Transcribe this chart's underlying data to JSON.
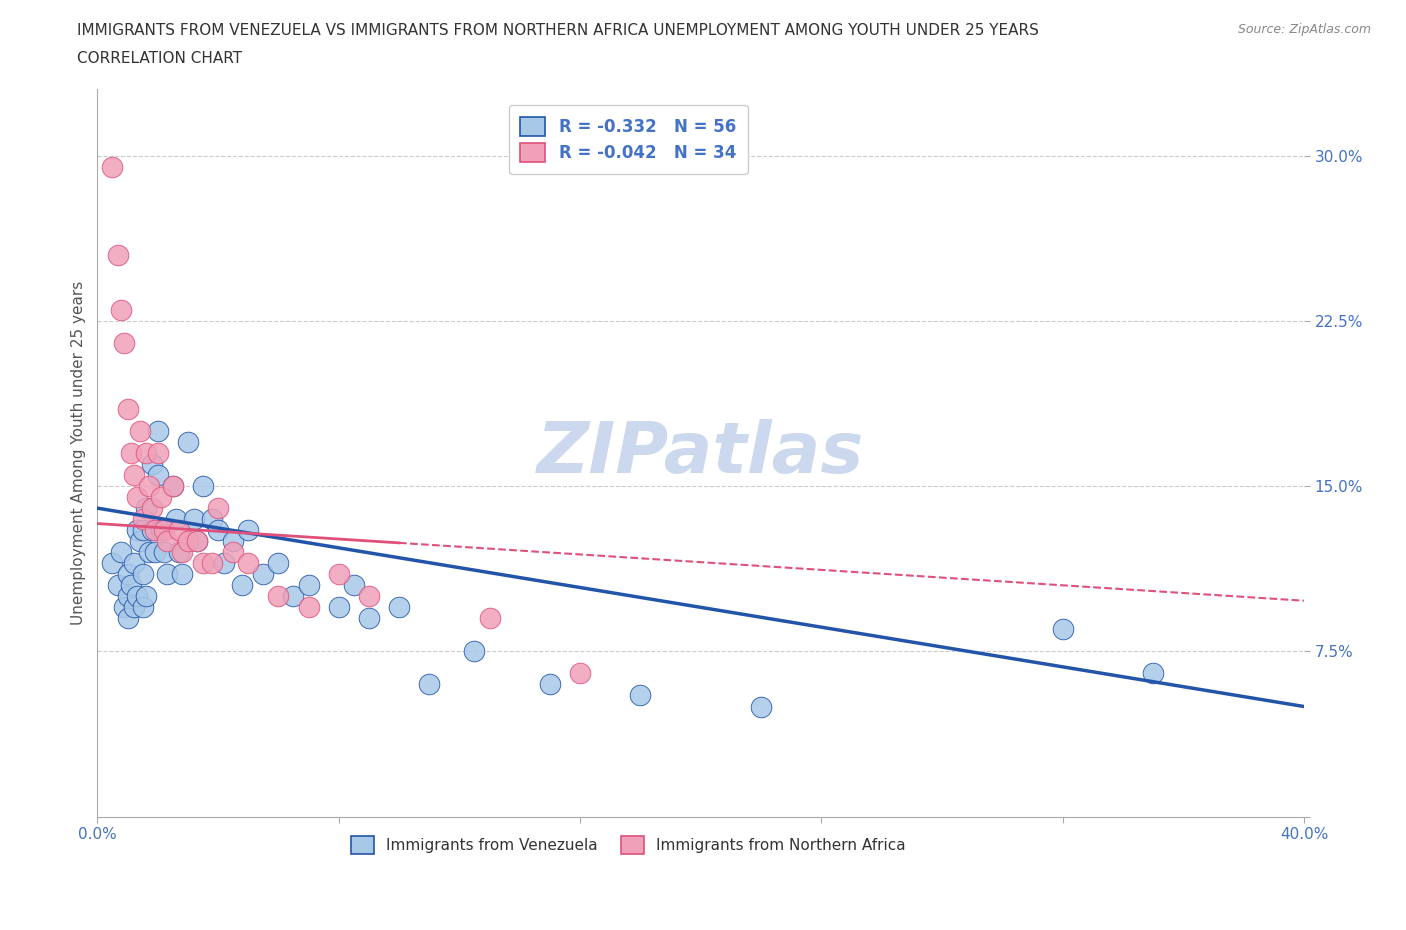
{
  "title_line1": "IMMIGRANTS FROM VENEZUELA VS IMMIGRANTS FROM NORTHERN AFRICA UNEMPLOYMENT AMONG YOUTH UNDER 25 YEARS",
  "title_line2": "CORRELATION CHART",
  "source_text": "Source: ZipAtlas.com",
  "ylabel": "Unemployment Among Youth under 25 years",
  "xlim": [
    0.0,
    0.4
  ],
  "ylim": [
    0.0,
    0.33
  ],
  "ytick_labels": [
    "",
    "7.5%",
    "15.0%",
    "22.5%",
    "30.0%"
  ],
  "ytick_values": [
    0.0,
    0.075,
    0.15,
    0.225,
    0.3
  ],
  "xtick_labels": [
    "0.0%",
    "",
    "",
    "",
    "",
    "40.0%"
  ],
  "xtick_values": [
    0.0,
    0.08,
    0.16,
    0.24,
    0.32,
    0.4
  ],
  "legend_r1": "R = -0.332   N = 56",
  "legend_r2": "R = -0.042   N = 34",
  "watermark": "ZIPatlas",
  "color_venezuela": "#a8c8e8",
  "color_venezuela_line": "#2255aa",
  "color_n_africa": "#f0a0b8",
  "color_n_africa_line": "#e0507a",
  "background_color": "#ffffff",
  "grid_color": "#cccccc",
  "title_color": "#333333",
  "axis_label_color": "#4472c4",
  "watermark_color": "#ccd8ee",
  "venezuela_x": [
    0.005,
    0.007,
    0.008,
    0.009,
    0.01,
    0.01,
    0.01,
    0.011,
    0.012,
    0.012,
    0.013,
    0.013,
    0.014,
    0.015,
    0.015,
    0.015,
    0.016,
    0.016,
    0.017,
    0.018,
    0.018,
    0.019,
    0.02,
    0.02,
    0.021,
    0.022,
    0.023,
    0.025,
    0.026,
    0.027,
    0.028,
    0.03,
    0.032,
    0.033,
    0.035,
    0.038,
    0.04,
    0.042,
    0.045,
    0.048,
    0.05,
    0.055,
    0.06,
    0.065,
    0.07,
    0.08,
    0.085,
    0.09,
    0.1,
    0.11,
    0.125,
    0.15,
    0.18,
    0.22,
    0.32,
    0.35
  ],
  "venezuela_y": [
    0.115,
    0.105,
    0.12,
    0.095,
    0.11,
    0.1,
    0.09,
    0.105,
    0.115,
    0.095,
    0.13,
    0.1,
    0.125,
    0.13,
    0.11,
    0.095,
    0.14,
    0.1,
    0.12,
    0.13,
    0.16,
    0.12,
    0.175,
    0.155,
    0.13,
    0.12,
    0.11,
    0.15,
    0.135,
    0.12,
    0.11,
    0.17,
    0.135,
    0.125,
    0.15,
    0.135,
    0.13,
    0.115,
    0.125,
    0.105,
    0.13,
    0.11,
    0.115,
    0.1,
    0.105,
    0.095,
    0.105,
    0.09,
    0.095,
    0.06,
    0.075,
    0.06,
    0.055,
    0.05,
    0.085,
    0.065
  ],
  "n_africa_x": [
    0.005,
    0.007,
    0.008,
    0.009,
    0.01,
    0.011,
    0.012,
    0.013,
    0.014,
    0.015,
    0.016,
    0.017,
    0.018,
    0.019,
    0.02,
    0.021,
    0.022,
    0.023,
    0.025,
    0.027,
    0.028,
    0.03,
    0.033,
    0.035,
    0.038,
    0.04,
    0.045,
    0.05,
    0.06,
    0.07,
    0.08,
    0.09,
    0.13,
    0.16
  ],
  "n_africa_y": [
    0.295,
    0.255,
    0.23,
    0.215,
    0.185,
    0.165,
    0.155,
    0.145,
    0.175,
    0.135,
    0.165,
    0.15,
    0.14,
    0.13,
    0.165,
    0.145,
    0.13,
    0.125,
    0.15,
    0.13,
    0.12,
    0.125,
    0.125,
    0.115,
    0.115,
    0.14,
    0.12,
    0.115,
    0.1,
    0.095,
    0.11,
    0.1,
    0.09,
    0.065
  ],
  "v_line_x0": 0.0,
  "v_line_y0": 0.14,
  "v_line_x1": 0.4,
  "v_line_y1": 0.05,
  "n_line_x0": 0.0,
  "n_line_y0": 0.133,
  "n_line_x1": 0.4,
  "n_line_y1": 0.098,
  "n_line_solid_end": 0.1
}
